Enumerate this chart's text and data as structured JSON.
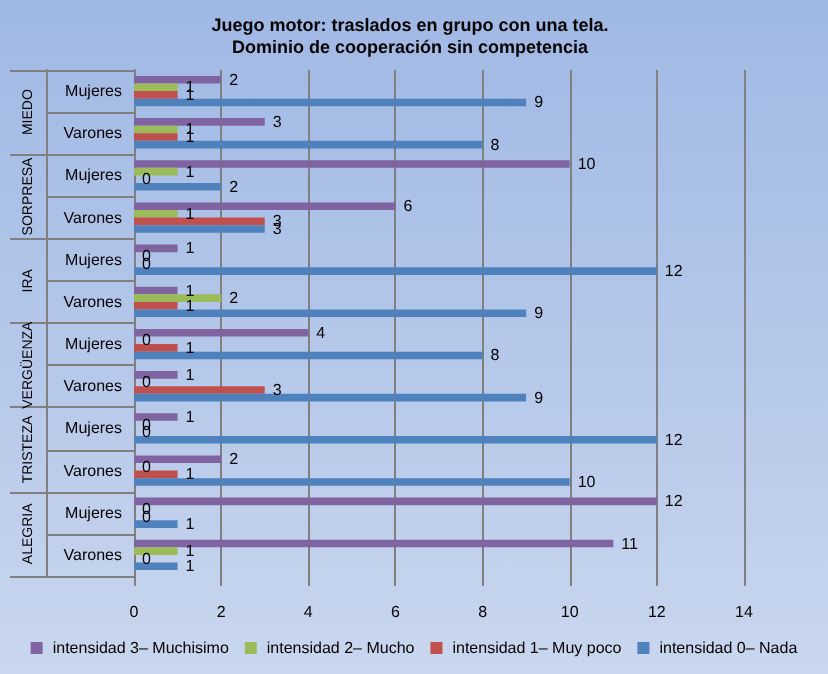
{
  "chart_data": {
    "type": "bar",
    "orientation": "horizontal",
    "title": "Juego motor: traslados en grupo con una tela.",
    "subtitle": "Dominio de cooperación sin competencia",
    "categories": [
      "Mujeres",
      "Varones",
      "Mujeres",
      "Varones",
      "Mujeres",
      "Varones",
      "Mujeres",
      "Varones",
      "Mujeres",
      "Varones",
      "Mujeres",
      "Varones"
    ],
    "annotations": [
      "MIEDO",
      "SORPRESA",
      "IRA",
      "VERGÜENZA",
      "TRISTEZA",
      "ALEGRIA"
    ],
    "series": [
      {
        "name": "intensidad 3– Muchisimo",
        "color": "#8064a2",
        "values": [
          2,
          3,
          10,
          6,
          1,
          1,
          4,
          1,
          1,
          2,
          12,
          11
        ]
      },
      {
        "name": "intensidad 2– Mucho",
        "color": "#9bbb59",
        "values": [
          1,
          1,
          1,
          1,
          0,
          2,
          0,
          0,
          0,
          0,
          0,
          1
        ]
      },
      {
        "name": "intensidad 1– Muy poco",
        "color": "#c0504d",
        "values": [
          1,
          1,
          0,
          3,
          0,
          1,
          1,
          3,
          0,
          1,
          0,
          0
        ]
      },
      {
        "name": "intensidad 0– Nada",
        "color": "#4f81bd",
        "values": [
          9,
          8,
          2,
          3,
          12,
          9,
          8,
          9,
          12,
          10,
          1,
          1
        ]
      }
    ],
    "xlim": [
      0,
      14
    ],
    "xticks": [
      0,
      2,
      4,
      6,
      8,
      10,
      12,
      14
    ],
    "grid": "x",
    "legend": "bottom",
    "data_labels": true
  }
}
